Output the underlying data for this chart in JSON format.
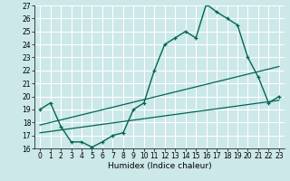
{
  "xlabel": "Humidex (Indice chaleur)",
  "background_color": "#cce8e8",
  "grid_color": "#ffffff",
  "line_color": "#006655",
  "xlim": [
    -0.5,
    23.5
  ],
  "ylim": [
    16,
    27
  ],
  "xticks": [
    0,
    1,
    2,
    3,
    4,
    5,
    6,
    7,
    8,
    9,
    10,
    11,
    12,
    13,
    14,
    15,
    16,
    17,
    18,
    19,
    20,
    21,
    22,
    23
  ],
  "yticks": [
    16,
    17,
    18,
    19,
    20,
    21,
    22,
    23,
    24,
    25,
    26,
    27
  ],
  "main_line_x": [
    0,
    1,
    2,
    3,
    4,
    5,
    6,
    7,
    8,
    9,
    10,
    11,
    12,
    13,
    14,
    15,
    16,
    17,
    18,
    19,
    20,
    21,
    22,
    23
  ],
  "main_line_y": [
    19.0,
    19.5,
    17.7,
    16.5,
    16.5,
    16.1,
    16.5,
    17.0,
    17.2,
    19.0,
    19.5,
    22.0,
    24.0,
    24.5,
    25.0,
    24.5,
    27.1,
    26.5,
    26.0,
    25.5,
    23.0,
    21.5,
    19.5,
    20.0
  ],
  "trend1_x": [
    0,
    23
  ],
  "trend1_y": [
    17.8,
    22.3
  ],
  "trend2_x": [
    0,
    23
  ],
  "trend2_y": [
    17.2,
    19.7
  ],
  "tick_fontsize": 5.5,
  "xlabel_fontsize": 6.5
}
